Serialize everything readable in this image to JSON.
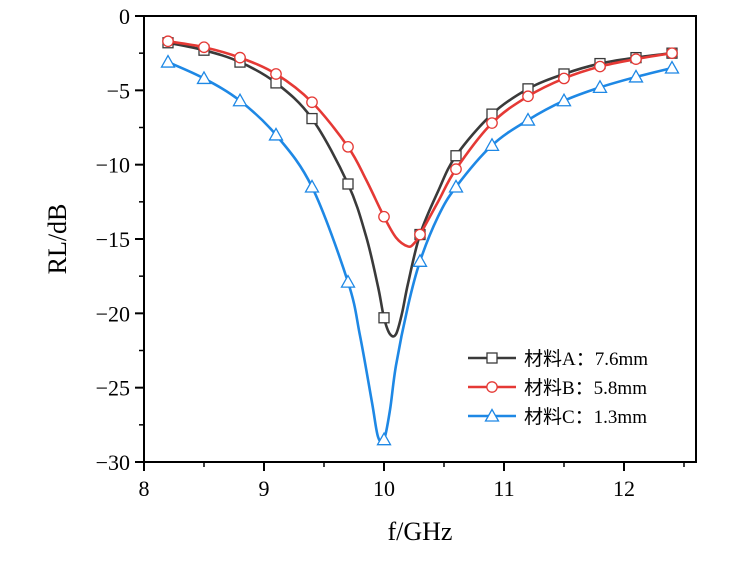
{
  "chart_data": {
    "type": "line",
    "xlabel": "f/GHz",
    "ylabel": "RL/dB",
    "xlim": [
      8,
      12.6
    ],
    "ylim": [
      -30,
      0
    ],
    "xticks": [
      8,
      9,
      10,
      11,
      12
    ],
    "yticks": [
      0,
      -5,
      -10,
      -15,
      -20,
      -25,
      -30
    ],
    "xtick_labels": [
      "8",
      "9",
      "10",
      "11",
      "12"
    ],
    "ytick_labels": [
      "0",
      "−5",
      "−10",
      "−15",
      "−20",
      "−25",
      "−30"
    ],
    "legend_position": "bottom-right",
    "grid": false,
    "series": [
      {
        "name": "材料A：7.6mm",
        "color": "#3a3a3a",
        "marker": "square",
        "x": [
          8.2,
          8.5,
          8.8,
          9.1,
          9.4,
          9.7,
          10.0,
          10.3,
          10.6,
          10.9,
          11.2,
          11.5,
          11.8,
          12.1,
          12.4
        ],
        "y": [
          -1.8,
          -2.3,
          -3.1,
          -4.5,
          -6.9,
          -11.3,
          -20.3,
          -14.7,
          -9.4,
          -6.6,
          -4.9,
          -3.9,
          -3.2,
          -2.8,
          -2.5
        ],
        "curve_x": [
          8.2,
          8.5,
          8.8,
          9.1,
          9.4,
          9.7,
          9.85,
          9.95,
          10.0,
          10.05,
          10.1,
          10.15,
          10.2,
          10.3,
          10.45,
          10.6,
          10.9,
          11.2,
          11.5,
          11.8,
          12.1,
          12.4
        ],
        "curve_y": [
          -1.8,
          -2.3,
          -3.1,
          -4.5,
          -6.9,
          -11.3,
          -14.8,
          -18.2,
          -20.3,
          -21.4,
          -21.4,
          -20.0,
          -18.0,
          -14.7,
          -11.8,
          -9.4,
          -6.6,
          -4.9,
          -3.9,
          -3.2,
          -2.8,
          -2.5
        ]
      },
      {
        "name": "材料B：5.8mm",
        "color": "#e53935",
        "marker": "circle",
        "x": [
          8.2,
          8.5,
          8.8,
          9.1,
          9.4,
          9.7,
          10.0,
          10.3,
          10.6,
          10.9,
          11.2,
          11.5,
          11.8,
          12.1,
          12.4
        ],
        "y": [
          -1.7,
          -2.1,
          -2.8,
          -3.9,
          -5.8,
          -8.8,
          -13.5,
          -14.7,
          -10.3,
          -7.2,
          -5.4,
          -4.2,
          -3.4,
          -2.9,
          -2.5
        ],
        "curve_x": [
          8.2,
          8.5,
          8.8,
          9.1,
          9.4,
          9.7,
          9.85,
          10.0,
          10.1,
          10.2,
          10.25,
          10.3,
          10.45,
          10.6,
          10.9,
          11.2,
          11.5,
          11.8,
          12.1,
          12.4
        ],
        "curve_y": [
          -1.7,
          -2.1,
          -2.8,
          -3.9,
          -5.8,
          -8.8,
          -11.0,
          -13.5,
          -14.9,
          -15.5,
          -15.3,
          -14.7,
          -12.5,
          -10.3,
          -7.2,
          -5.4,
          -4.2,
          -3.4,
          -2.9,
          -2.5
        ]
      },
      {
        "name": "材料C：1.3mm",
        "color": "#1e88e5",
        "marker": "triangle",
        "x": [
          8.2,
          8.5,
          8.8,
          9.1,
          9.4,
          9.7,
          10.0,
          10.3,
          10.6,
          10.9,
          11.2,
          11.5,
          11.8,
          12.1,
          12.4
        ],
        "y": [
          -3.1,
          -4.2,
          -5.7,
          -8.0,
          -11.5,
          -17.9,
          -28.5,
          -16.5,
          -11.5,
          -8.7,
          -7.0,
          -5.7,
          -4.8,
          -4.1,
          -3.5
        ],
        "curve_x": [
          8.2,
          8.5,
          8.8,
          9.1,
          9.4,
          9.7,
          9.8,
          9.9,
          9.95,
          10.0,
          10.05,
          10.1,
          10.2,
          10.3,
          10.45,
          10.6,
          10.9,
          11.2,
          11.5,
          11.8,
          12.1,
          12.4
        ],
        "curve_y": [
          -3.1,
          -4.2,
          -5.7,
          -8.0,
          -11.5,
          -17.9,
          -21.5,
          -26.0,
          -28.3,
          -28.5,
          -26.5,
          -23.5,
          -19.5,
          -16.5,
          -13.5,
          -11.5,
          -8.7,
          -7.0,
          -5.7,
          -4.8,
          -4.1,
          -3.5
        ]
      }
    ]
  }
}
